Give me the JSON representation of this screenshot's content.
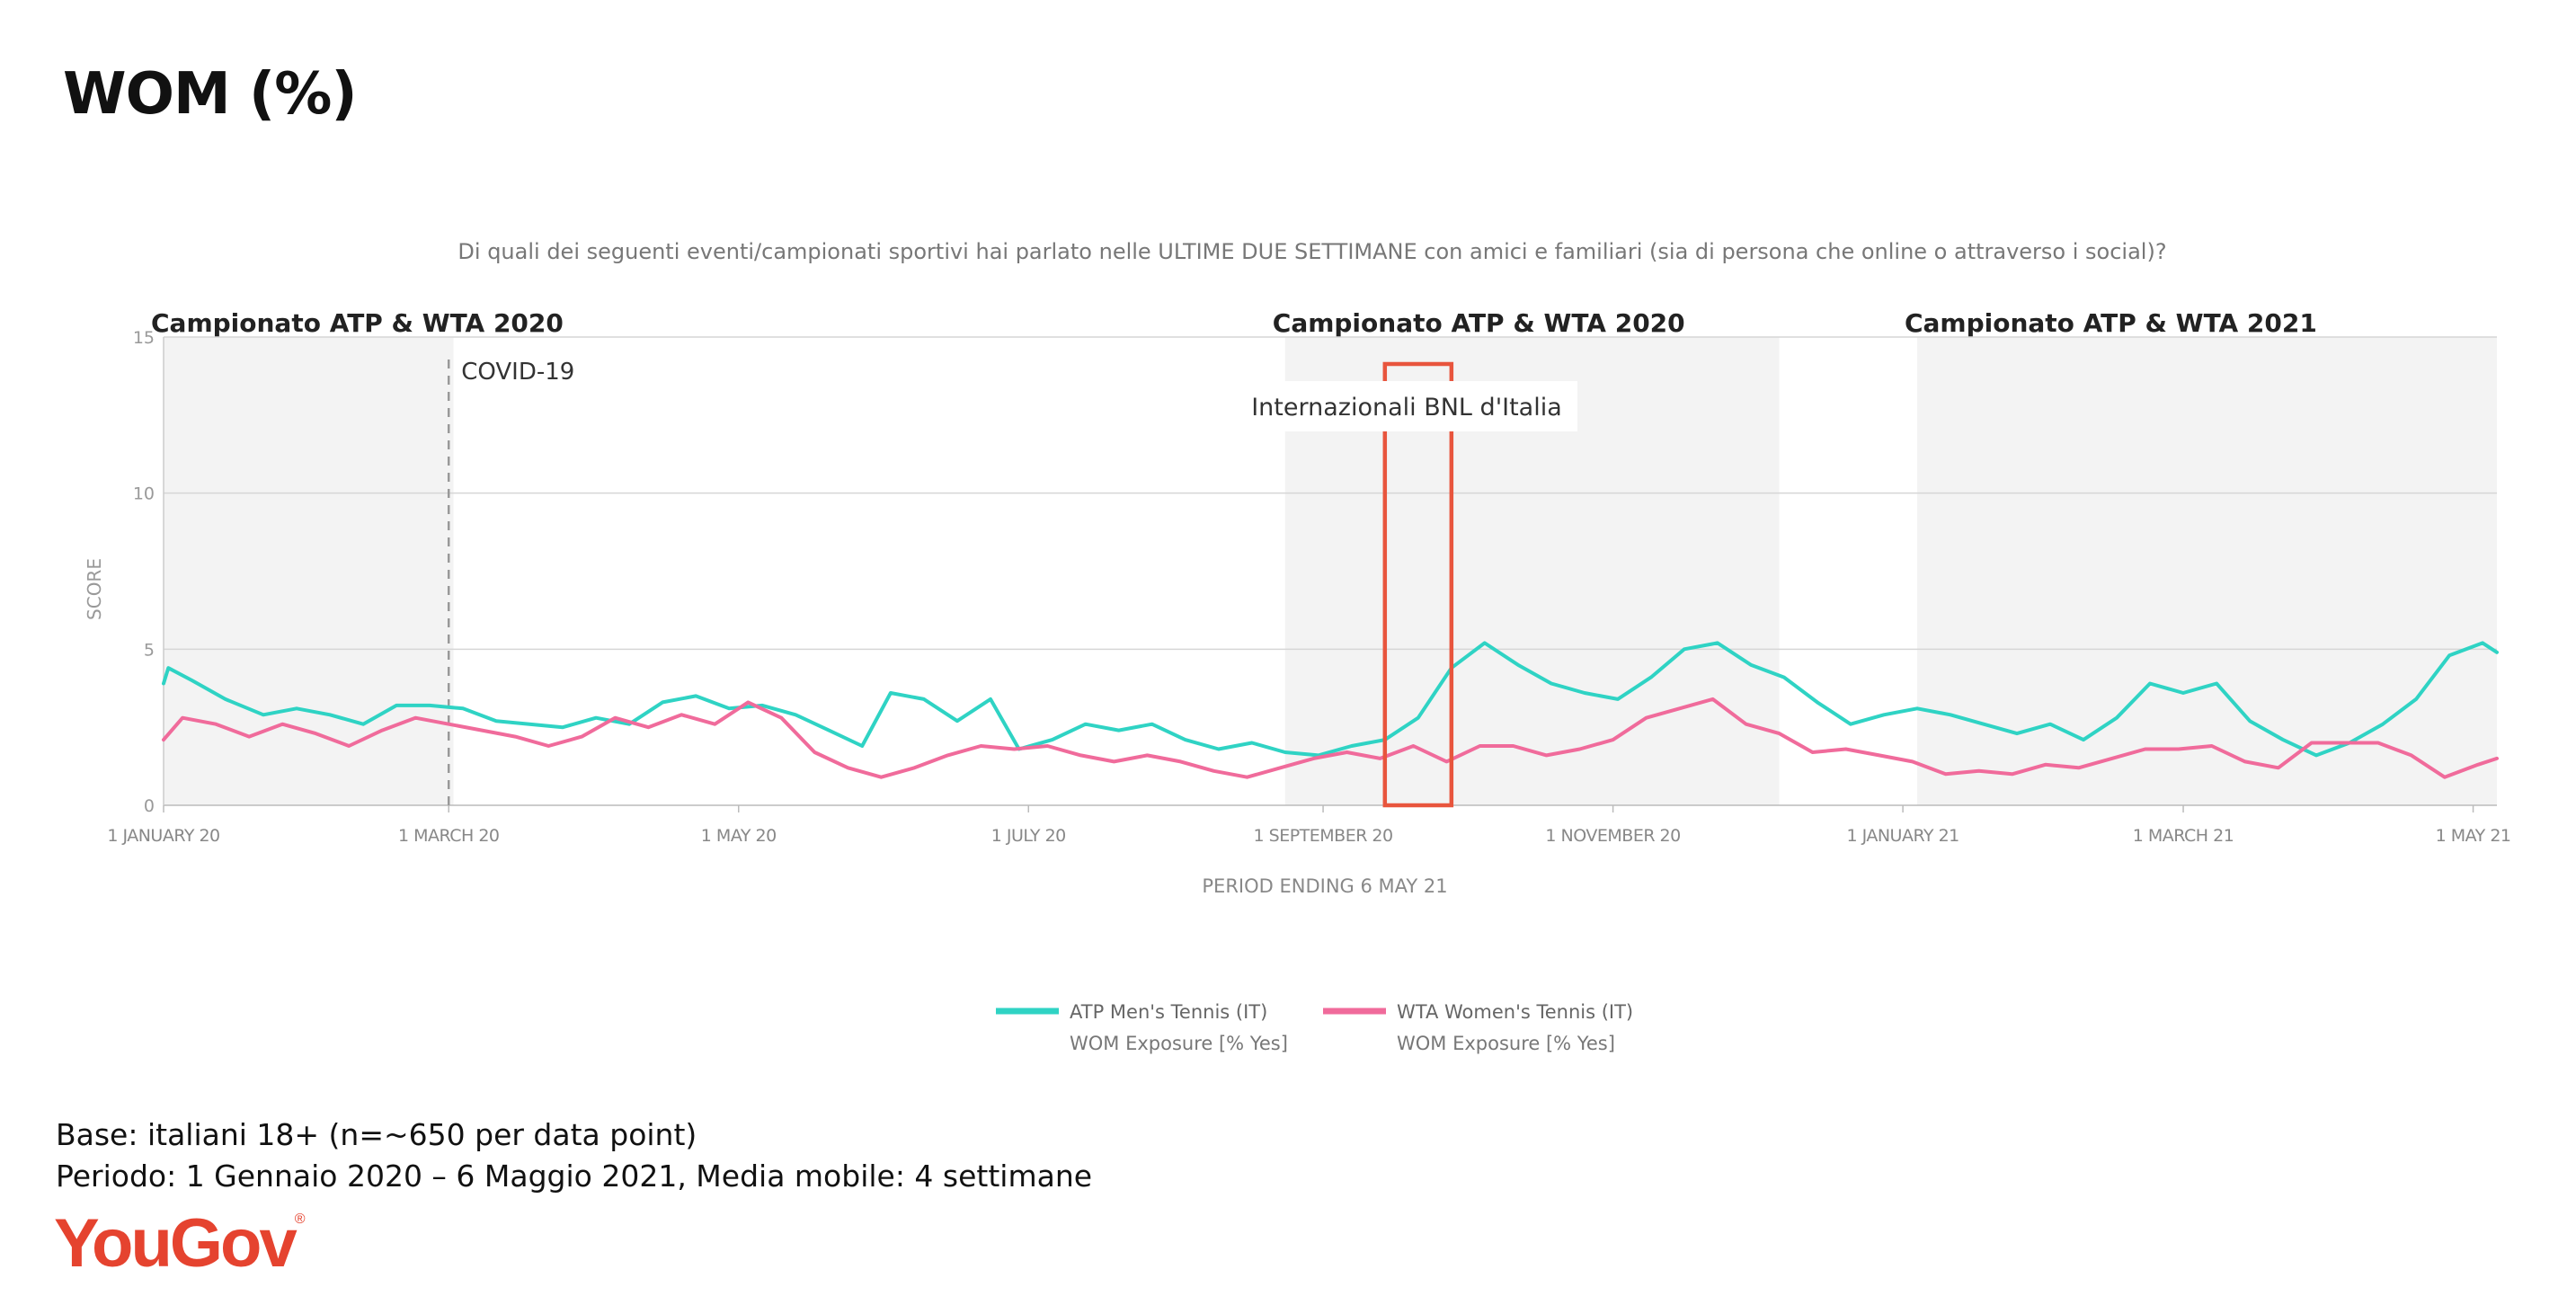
{
  "page_title": "WOM (%)",
  "question": "Di quali dei seguenti eventi/campionati sportivi hai parlato nelle ULTIME DUE SETTIMANE con amici e familiari (sia di persona che online o attraverso i social)?",
  "footer": {
    "base": "Base: italiani 18+ (n=~650 per data point)",
    "period": "Periodo: 1 Gennaio 2020 – 6 Maggio 2021, Media mobile: 4 settimane"
  },
  "logo": {
    "text": "YouGov",
    "mark": "®",
    "color": "#e5432f"
  },
  "colors": {
    "atp": "#2fd3c4",
    "wta": "#f06b9b",
    "highlight": "#e8553d",
    "shade": "#f3f3f3"
  },
  "chart_data": {
    "type": "line",
    "ylabel": "SCORE",
    "xlabel": "PERIOD ENDING 6 MAY 21",
    "ylim": [
      0,
      15
    ],
    "yticks": [
      0,
      5,
      10,
      15
    ],
    "xlim": [
      "2020-01-01",
      "2021-05-06"
    ],
    "xticks": [
      {
        "date": "2020-01-01",
        "label": "1 JANUARY 20"
      },
      {
        "date": "2020-03-01",
        "label": "1 MARCH 20"
      },
      {
        "date": "2020-05-01",
        "label": "1 MAY 20"
      },
      {
        "date": "2020-07-01",
        "label": "1 JULY 20"
      },
      {
        "date": "2020-09-01",
        "label": "1 SEPTEMBER 20"
      },
      {
        "date": "2020-11-01",
        "label": "1 NOVEMBER 20"
      },
      {
        "date": "2021-01-01",
        "label": "1 JANUARY 21"
      },
      {
        "date": "2021-03-01",
        "label": "1 MARCH 21"
      },
      {
        "date": "2021-05-01",
        "label": "1 MAY 21"
      }
    ],
    "grid": true,
    "legend_position": "bottom-center",
    "shaded_periods": [
      {
        "start": "2020-01-01",
        "end": "2020-03-02",
        "label": "Campionato ATP & WTA 2020"
      },
      {
        "start": "2020-08-24",
        "end": "2020-12-06",
        "label": "Campionato ATP & WTA 2020"
      },
      {
        "start": "2021-01-04",
        "end": "2021-05-06",
        "label": "Campionato ATP & WTA 2021"
      }
    ],
    "event_lines": [
      {
        "date": "2020-03-01",
        "label": "COVID-19"
      }
    ],
    "highlight_periods": [
      {
        "start": "2020-09-14",
        "end": "2020-09-28",
        "label": "Internazionali BNL d'Italia"
      }
    ],
    "series": [
      {
        "name": "ATP Men's Tennis (IT)",
        "subtitle": "WOM Exposure [% Yes]",
        "color": "#2fd3c4",
        "points": [
          [
            "2019-12-29",
            3.9
          ],
          [
            "2020-01-02",
            4.4
          ],
          [
            "2020-01-07",
            4.0
          ],
          [
            "2020-01-14",
            3.4
          ],
          [
            "2020-01-22",
            2.9
          ],
          [
            "2020-01-29",
            3.1
          ],
          [
            "2020-02-05",
            2.9
          ],
          [
            "2020-02-12",
            2.6
          ],
          [
            "2020-02-19",
            3.2
          ],
          [
            "2020-02-26",
            3.2
          ],
          [
            "2020-03-04",
            3.1
          ],
          [
            "2020-03-11",
            2.7
          ],
          [
            "2020-03-18",
            2.6
          ],
          [
            "2020-03-25",
            2.5
          ],
          [
            "2020-04-01",
            2.8
          ],
          [
            "2020-04-08",
            2.6
          ],
          [
            "2020-04-15",
            3.3
          ],
          [
            "2020-04-22",
            3.5
          ],
          [
            "2020-04-29",
            3.1
          ],
          [
            "2020-05-06",
            3.2
          ],
          [
            "2020-05-13",
            2.9
          ],
          [
            "2020-05-20",
            2.4
          ],
          [
            "2020-05-27",
            1.9
          ],
          [
            "2020-06-02",
            3.6
          ],
          [
            "2020-06-09",
            3.4
          ],
          [
            "2020-06-16",
            2.7
          ],
          [
            "2020-06-23",
            3.4
          ],
          [
            "2020-06-29",
            1.8
          ],
          [
            "2020-07-06",
            2.1
          ],
          [
            "2020-07-13",
            2.6
          ],
          [
            "2020-07-20",
            2.4
          ],
          [
            "2020-07-27",
            2.6
          ],
          [
            "2020-08-03",
            2.1
          ],
          [
            "2020-08-10",
            1.8
          ],
          [
            "2020-08-17",
            2.0
          ],
          [
            "2020-08-24",
            1.7
          ],
          [
            "2020-08-31",
            1.6
          ],
          [
            "2020-09-07",
            1.9
          ],
          [
            "2020-09-14",
            2.1
          ],
          [
            "2020-09-21",
            2.8
          ],
          [
            "2020-09-28",
            4.4
          ],
          [
            "2020-10-05",
            5.2
          ],
          [
            "2020-10-12",
            4.5
          ],
          [
            "2020-10-19",
            3.9
          ],
          [
            "2020-10-26",
            3.6
          ],
          [
            "2020-11-02",
            3.4
          ],
          [
            "2020-11-09",
            4.1
          ],
          [
            "2020-11-16",
            5.0
          ],
          [
            "2020-11-23",
            5.2
          ],
          [
            "2020-11-30",
            4.5
          ],
          [
            "2020-12-07",
            4.1
          ],
          [
            "2020-12-14",
            3.3
          ],
          [
            "2020-12-21",
            2.6
          ],
          [
            "2020-12-28",
            2.9
          ],
          [
            "2021-01-04",
            3.1
          ],
          [
            "2021-01-11",
            2.9
          ],
          [
            "2021-01-18",
            2.6
          ],
          [
            "2021-01-25",
            2.3
          ],
          [
            "2021-02-01",
            2.6
          ],
          [
            "2021-02-08",
            2.1
          ],
          [
            "2021-02-15",
            2.8
          ],
          [
            "2021-02-22",
            3.9
          ],
          [
            "2021-03-01",
            3.6
          ],
          [
            "2021-03-08",
            3.9
          ],
          [
            "2021-03-15",
            2.7
          ],
          [
            "2021-03-22",
            2.1
          ],
          [
            "2021-03-29",
            1.6
          ],
          [
            "2021-04-05",
            2.0
          ],
          [
            "2021-04-12",
            2.6
          ],
          [
            "2021-04-19",
            3.4
          ],
          [
            "2021-04-26",
            4.8
          ],
          [
            "2021-05-03",
            5.2
          ],
          [
            "2021-05-06",
            4.9
          ]
        ]
      },
      {
        "name": "WTA Women's Tennis (IT)",
        "subtitle": "WOM Exposure [% Yes]",
        "color": "#f06b9b",
        "points": [
          [
            "2019-12-29",
            2.1
          ],
          [
            "2020-01-05",
            2.8
          ],
          [
            "2020-01-12",
            2.6
          ],
          [
            "2020-01-19",
            2.2
          ],
          [
            "2020-01-26",
            2.6
          ],
          [
            "2020-02-02",
            2.3
          ],
          [
            "2020-02-09",
            1.9
          ],
          [
            "2020-02-16",
            2.4
          ],
          [
            "2020-02-23",
            2.8
          ],
          [
            "2020-03-01",
            2.6
          ],
          [
            "2020-03-08",
            2.4
          ],
          [
            "2020-03-15",
            2.2
          ],
          [
            "2020-03-22",
            1.9
          ],
          [
            "2020-03-29",
            2.2
          ],
          [
            "2020-04-05",
            2.8
          ],
          [
            "2020-04-12",
            2.5
          ],
          [
            "2020-04-19",
            2.9
          ],
          [
            "2020-04-26",
            2.6
          ],
          [
            "2020-05-03",
            3.3
          ],
          [
            "2020-05-10",
            2.8
          ],
          [
            "2020-05-17",
            1.7
          ],
          [
            "2020-05-24",
            1.2
          ],
          [
            "2020-05-31",
            0.9
          ],
          [
            "2020-06-07",
            1.2
          ],
          [
            "2020-06-14",
            1.6
          ],
          [
            "2020-06-21",
            1.9
          ],
          [
            "2020-06-28",
            1.8
          ],
          [
            "2020-07-05",
            1.9
          ],
          [
            "2020-07-12",
            1.6
          ],
          [
            "2020-07-19",
            1.4
          ],
          [
            "2020-07-26",
            1.6
          ],
          [
            "2020-08-02",
            1.4
          ],
          [
            "2020-08-09",
            1.1
          ],
          [
            "2020-08-16",
            0.9
          ],
          [
            "2020-08-23",
            1.2
          ],
          [
            "2020-08-30",
            1.5
          ],
          [
            "2020-09-06",
            1.7
          ],
          [
            "2020-09-13",
            1.5
          ],
          [
            "2020-09-20",
            1.9
          ],
          [
            "2020-09-27",
            1.4
          ],
          [
            "2020-10-04",
            1.9
          ],
          [
            "2020-10-11",
            1.9
          ],
          [
            "2020-10-18",
            1.6
          ],
          [
            "2020-10-25",
            1.8
          ],
          [
            "2020-11-01",
            2.1
          ],
          [
            "2020-11-08",
            2.8
          ],
          [
            "2020-11-15",
            3.1
          ],
          [
            "2020-11-22",
            3.4
          ],
          [
            "2020-11-29",
            2.6
          ],
          [
            "2020-12-06",
            2.3
          ],
          [
            "2020-12-13",
            1.7
          ],
          [
            "2020-12-20",
            1.8
          ],
          [
            "2020-12-27",
            1.6
          ],
          [
            "2021-01-03",
            1.4
          ],
          [
            "2021-01-10",
            1.0
          ],
          [
            "2021-01-17",
            1.1
          ],
          [
            "2021-01-24",
            1.0
          ],
          [
            "2021-01-31",
            1.3
          ],
          [
            "2021-02-07",
            1.2
          ],
          [
            "2021-02-14",
            1.5
          ],
          [
            "2021-02-21",
            1.8
          ],
          [
            "2021-02-28",
            1.8
          ],
          [
            "2021-03-07",
            1.9
          ],
          [
            "2021-03-14",
            1.4
          ],
          [
            "2021-03-21",
            1.2
          ],
          [
            "2021-03-28",
            2.0
          ],
          [
            "2021-04-04",
            2.0
          ],
          [
            "2021-04-11",
            2.0
          ],
          [
            "2021-04-18",
            1.6
          ],
          [
            "2021-04-25",
            0.9
          ],
          [
            "2021-05-02",
            1.3
          ],
          [
            "2021-05-06",
            1.5
          ]
        ]
      }
    ]
  }
}
